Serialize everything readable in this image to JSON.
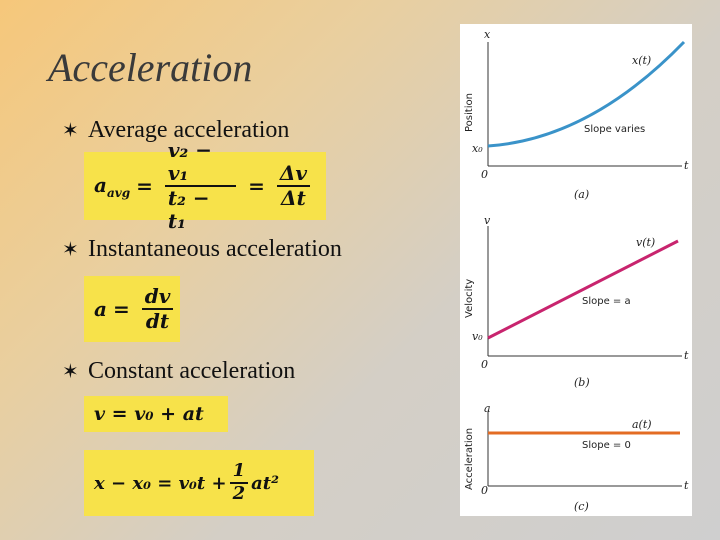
{
  "slide": {
    "title": "Acceleration",
    "bullets": [
      {
        "label": "Average acceleration"
      },
      {
        "label": "Instantaneous acceleration"
      },
      {
        "label": "Constant acceleration"
      }
    ],
    "bullet_icon": "star-bullet-icon"
  },
  "equations": {
    "avg_lhs": "a",
    "avg_lhs_sub": "avg",
    "avg_num1": "v₂ − v₁",
    "avg_den1": "t₂ − t₁",
    "avg_num2": "Δv",
    "avg_den2": "Δt",
    "inst_lhs": "a",
    "inst_num": "dv",
    "inst_den": "dt",
    "const1": "v = v₀ + at",
    "const2_lhs": "x − x₀ = v₀t +",
    "const2_num": "1",
    "const2_den": "2",
    "const2_tail": "at²"
  },
  "figure": {
    "panel_a": {
      "y_axis": "x",
      "y_label": "Position",
      "x_axis": "t",
      "origin": "0",
      "y0": "x₀",
      "curve": "x(t)",
      "note": "Slope varies",
      "caption": "(a)"
    },
    "panel_b": {
      "y_axis": "v",
      "y_label": "Velocity",
      "x_axis": "t",
      "origin": "0",
      "y0": "v₀",
      "curve": "v(t)",
      "note": "Slope = a",
      "caption": "(b)"
    },
    "panel_c": {
      "y_axis": "a",
      "y_label": "Acceleration",
      "x_axis": "t",
      "origin": "0",
      "curve": "a(t)",
      "note": "Slope = 0",
      "caption": "(c)"
    }
  },
  "colors": {
    "box": "#f7e24a",
    "curve_a": "#3a93c9",
    "curve_b": "#c8246e",
    "curve_c": "#e36c24"
  }
}
